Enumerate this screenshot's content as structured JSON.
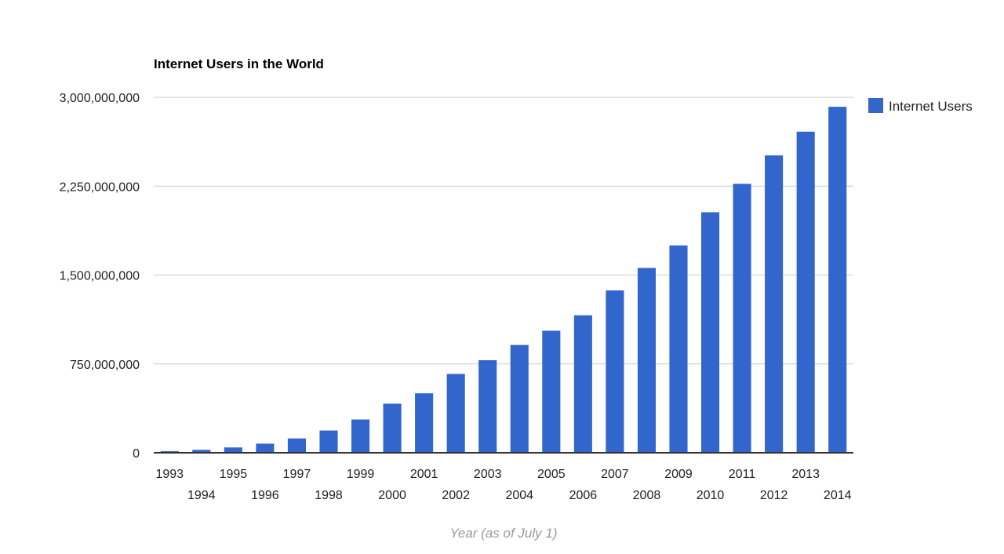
{
  "chart_data": {
    "type": "bar",
    "title": "Internet Users in the World",
    "xlabel": "Year (as of July 1)",
    "ylabel": "",
    "ylim": [
      0,
      3000000000
    ],
    "yticks": [
      0,
      750000000,
      1500000000,
      2250000000,
      3000000000
    ],
    "ytick_labels": [
      "0",
      "750,000,000",
      "1,500,000,000",
      "2,250,000,000",
      "3,000,000,000"
    ],
    "grid": true,
    "legend_position": "right",
    "categories": [
      "1993",
      "1994",
      "1995",
      "1996",
      "1997",
      "1998",
      "1999",
      "2000",
      "2001",
      "2002",
      "2003",
      "2004",
      "2005",
      "2006",
      "2007",
      "2008",
      "2009",
      "2010",
      "2011",
      "2012",
      "2013",
      "2014"
    ],
    "series": [
      {
        "name": "Internet Users",
        "color": "#3366cc",
        "values": [
          14000000,
          25000000,
          45000000,
          77000000,
          121000000,
          188000000,
          281000000,
          414000000,
          502000000,
          665000000,
          781000000,
          910000000,
          1030000000,
          1160000000,
          1370000000,
          1560000000,
          1750000000,
          2030000000,
          2270000000,
          2510000000,
          2710000000,
          2920000000
        ]
      }
    ]
  }
}
